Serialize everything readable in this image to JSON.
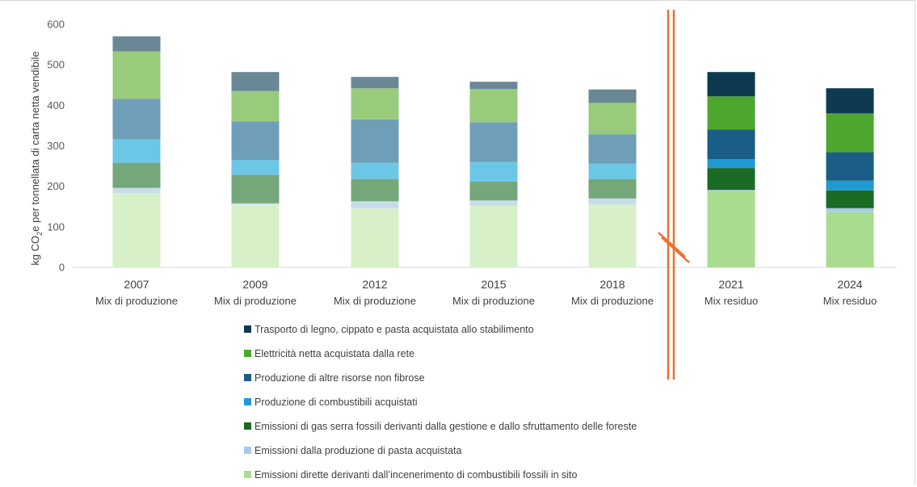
{
  "chart_data": {
    "type": "bar",
    "stacked": true,
    "ylabel_parts": [
      "kg CO",
      "2",
      "e per tonnellata di carta netta vendibile"
    ],
    "ylim": [
      0,
      600
    ],
    "yticks": [
      "0",
      "100",
      "200",
      "300",
      "400",
      "500",
      "600"
    ],
    "grid": false,
    "legend_position": "bottom",
    "categories": [
      {
        "year": "2007",
        "label": "Mix di produzione"
      },
      {
        "year": "2009",
        "label": "Mix di produzione"
      },
      {
        "year": "2012",
        "label": "Mix di produzione"
      },
      {
        "year": "2015",
        "label": "Mix di produzione"
      },
      {
        "year": "2018",
        "label": "Mix di produzione"
      },
      {
        "year": "2021",
        "label": "Mix residuo"
      },
      {
        "year": "2024",
        "label": "Mix residuo"
      }
    ],
    "series": [
      {
        "name": "Emissioni dirette derivanti dall’incenerimento di combustibili fossili in sito",
        "colors": [
          "#d7f0c8",
          "#d7f0c8",
          "#d7f0c8",
          "#d7f0c8",
          "#d7f0c8",
          "#a8dc8f",
          "#a8dc8f"
        ],
        "values": [
          183,
          155,
          145,
          152,
          155,
          188,
          136
        ]
      },
      {
        "name": "Emissioni dalla produzione di pasta acquistata",
        "colors": [
          "#c9dcea",
          "#c9dcea",
          "#c9dcea",
          "#c9dcea",
          "#c9dcea",
          "#a9cbe6",
          "#a9cbe6"
        ],
        "values": [
          13,
          3,
          18,
          13,
          15,
          3,
          10
        ]
      },
      {
        "name": "Emissioni di gas serra fossili derivanti dalla gestione e dallo sfruttamento delle foreste",
        "colors": [
          "#74a77a",
          "#74a77a",
          "#74a77a",
          "#74a77a",
          "#74a77a",
          "#1c6b25",
          "#1c6b25"
        ],
        "values": [
          62,
          70,
          55,
          47,
          48,
          54,
          44
        ]
      },
      {
        "name": "Produzione di combustibili acquistati",
        "colors": [
          "#6cc7e6",
          "#6cc7e6",
          "#6cc7e6",
          "#6cc7e6",
          "#6cc7e6",
          "#1f9ad3",
          "#1f9ad3"
        ],
        "values": [
          58,
          37,
          40,
          48,
          38,
          22,
          24
        ]
      },
      {
        "name": "Produzione di altre risorse non fibrose",
        "colors": [
          "#6f9fb8",
          "#6f9fb8",
          "#6f9fb8",
          "#6f9fb8",
          "#6f9fb8",
          "#1a5e85",
          "#1a5e85"
        ],
        "values": [
          100,
          95,
          107,
          98,
          72,
          73,
          70
        ]
      },
      {
        "name": "Elettricità netta acquistata dalla rete",
        "colors": [
          "#98cb7c",
          "#98cb7c",
          "#98cb7c",
          "#98cb7c",
          "#98cb7c",
          "#4ea72e",
          "#4ea72e"
        ],
        "values": [
          117,
          75,
          77,
          82,
          78,
          82,
          96
        ]
      },
      {
        "name": "Trasporto di legno, cippato e pasta acquistata allo stabilimento",
        "colors": [
          "#6a8795",
          "#6a8795",
          "#6a8795",
          "#6a8795",
          "#6a8795",
          "#0d3a50",
          "#0d3a50"
        ],
        "values": [
          37,
          47,
          28,
          18,
          33,
          60,
          62
        ]
      }
    ]
  }
}
